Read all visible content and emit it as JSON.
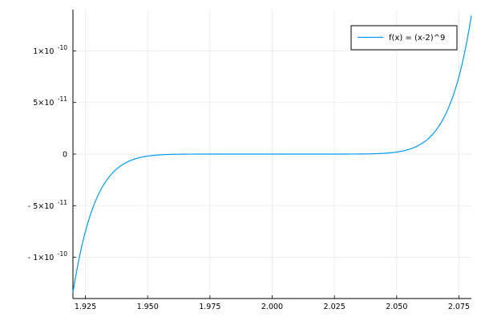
{
  "chart_data": {
    "type": "line",
    "title": "",
    "xlabel": "",
    "ylabel": "",
    "xlim": [
      1.92,
      2.08
    ],
    "ylim": [
      -1.4e-10,
      1.4e-10
    ],
    "x_ticks": [
      {
        "value": 1.925,
        "label": "1.925"
      },
      {
        "value": 1.95,
        "label": "1.950"
      },
      {
        "value": 1.975,
        "label": "1.975"
      },
      {
        "value": 2.0,
        "label": "2.000"
      },
      {
        "value": 2.025,
        "label": "2.025"
      },
      {
        "value": 2.05,
        "label": "2.050"
      },
      {
        "value": 2.075,
        "label": "2.075"
      }
    ],
    "y_ticks": [
      {
        "value": 1e-10,
        "mantissa": "1×10",
        "exponent": "-10"
      },
      {
        "value": 5e-11,
        "mantissa": "5×10",
        "exponent": "-11"
      },
      {
        "value": 0,
        "mantissa": "0",
        "exponent": ""
      },
      {
        "value": -5e-11,
        "mantissa": "- 5×10",
        "exponent": "-11"
      },
      {
        "value": -1e-10,
        "mantissa": "- 1×10",
        "exponent": "-10"
      }
    ],
    "grid": true,
    "legend_position": "top-right",
    "series": [
      {
        "name": "f(x) = (x-2)^9",
        "color": "#009af9",
        "x": [
          1.92,
          1.925,
          1.93,
          1.935,
          1.94,
          1.945,
          1.95,
          1.955,
          1.96,
          1.965,
          1.97,
          1.975,
          1.98,
          1.985,
          1.99,
          1.995,
          2.0,
          2.005,
          2.01,
          2.015,
          2.02,
          2.025,
          2.03,
          2.035,
          2.04,
          2.045,
          2.05,
          2.055,
          2.06,
          2.065,
          2.07,
          2.075,
          2.08
        ],
        "y": [
          -1.34e-10,
          -7.51e-11,
          -4.04e-11,
          -2.07e-11,
          -1.01e-11,
          -4.6e-12,
          -1.95e-12,
          -7.6e-13,
          -2.6e-13,
          -7.9e-14,
          -2e-14,
          -3.8e-15,
          -5.1e-16,
          -3.8e-17,
          -1e-18,
          -2e-21,
          0,
          2e-21,
          1e-18,
          3.8e-17,
          5.1e-16,
          3.8e-15,
          2e-14,
          7.9e-14,
          2.6e-13,
          7.6e-13,
          1.95e-12,
          4.6e-12,
          1.01e-11,
          2.07e-11,
          4.04e-11,
          7.51e-11,
          1.34e-10
        ]
      }
    ]
  }
}
